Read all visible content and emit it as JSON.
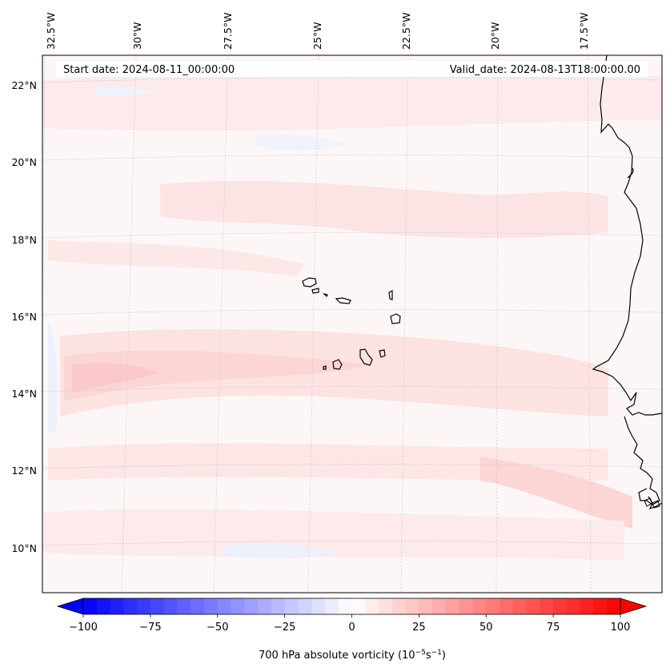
{
  "header": {
    "start_date": "Start date: 2024-08-11_00:00:00",
    "valid_date": "Valid_date: 2024-08-13T18:00:00.00"
  },
  "map": {
    "projection": "Lambert conformal",
    "lon_labels": [
      "32.5°W",
      "30°W",
      "27.5°W",
      "25°W",
      "22.5°W",
      "20°W",
      "17.5°W"
    ],
    "lat_labels": [
      "22°N",
      "20°N",
      "18°N",
      "16°N",
      "14°N",
      "12°N",
      "10°N"
    ],
    "features": [
      "Cape Verde islands",
      "West African coastline (Mauritania, Senegal, Gambia, Guinea-Bissau)"
    ],
    "gridlines": true
  },
  "colorbar": {
    "label_prefix": "700 hPa absolute vorticity (10",
    "label_exp1": "−5",
    "label_mid": "s",
    "label_exp2": "−1",
    "label_suffix": ")",
    "ticks": [
      "−100",
      "−75",
      "−50",
      "−25",
      "0",
      "25",
      "50",
      "75",
      "100"
    ],
    "min": -100,
    "max": 100,
    "step": 5,
    "extend": "both",
    "cmap": "bwr"
  },
  "colors": {
    "ocean_base": "#fdf5f5",
    "positive_light": "#fde6e6",
    "positive_mid": "#fcd6d6",
    "negative_light": "#f3f5fd",
    "coastline": "#000000",
    "grid": "#c8c8c8"
  }
}
